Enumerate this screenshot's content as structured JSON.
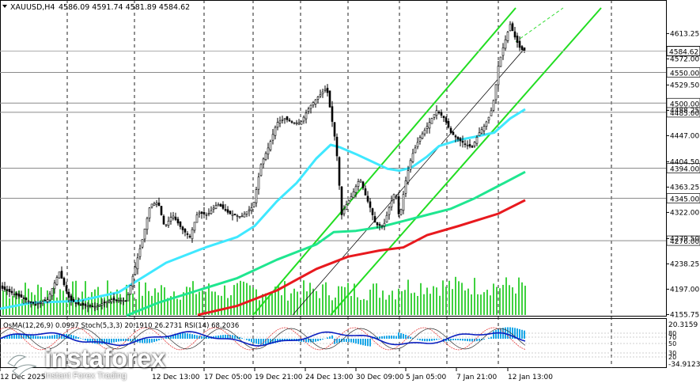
{
  "chart_data": {
    "type": "candlestick",
    "symbol": "XAUUSD,H4",
    "ohlc_header": "4586.09 4591.74 4581.89 4584.62",
    "current_price": 4584.62,
    "ylim": [
      4155,
      4655
    ],
    "price_ticks": [
      4613.25,
      4572.0,
      4529.5,
      4488.25,
      4447.0,
      4404.5,
      4363.25,
      4322.0,
      4279.5,
      4238.25,
      4197.0,
      4155.75
    ],
    "level_lines": [
      4550.0,
      4500.0,
      4485.0,
      4394.0,
      4345.0,
      4276.0
    ],
    "time_labels": [
      "12 Dec 2025",
      "12 Dec 13:00",
      "17 Dec 05:00",
      "19 Dec 21:00",
      "24 Dec 13:00",
      "30 Dec 09:00",
      "5 Jan 05:00",
      "7 Jan 21:00",
      "12 Jan 13:00"
    ],
    "price_anchors": [
      [
        0,
        4200
      ],
      [
        25,
        4185
      ],
      [
        45,
        4172
      ],
      [
        60,
        4180
      ],
      [
        75,
        4225
      ],
      [
        88,
        4180
      ],
      [
        100,
        4172
      ],
      [
        120,
        4168
      ],
      [
        140,
        4180
      ],
      [
        160,
        4178
      ],
      [
        180,
        4278
      ],
      [
        190,
        4335
      ],
      [
        200,
        4338
      ],
      [
        208,
        4298
      ],
      [
        218,
        4318
      ],
      [
        230,
        4295
      ],
      [
        240,
        4282
      ],
      [
        250,
        4322
      ],
      [
        262,
        4318
      ],
      [
        275,
        4336
      ],
      [
        290,
        4320
      ],
      [
        305,
        4315
      ],
      [
        320,
        4332
      ],
      [
        330,
        4400
      ],
      [
        340,
        4430
      ],
      [
        350,
        4468
      ],
      [
        360,
        4475
      ],
      [
        370,
        4468
      ],
      [
        380,
        4468
      ],
      [
        392,
        4495
      ],
      [
        402,
        4510
      ],
      [
        413,
        4525
      ],
      [
        420,
        4470
      ],
      [
        425,
        4430
      ],
      [
        432,
        4318
      ],
      [
        438,
        4335
      ],
      [
        445,
        4350
      ],
      [
        455,
        4378
      ],
      [
        462,
        4350
      ],
      [
        468,
        4330
      ],
      [
        475,
        4302
      ],
      [
        485,
        4300
      ],
      [
        492,
        4330
      ],
      [
        500,
        4358
      ],
      [
        505,
        4310
      ],
      [
        512,
        4368
      ],
      [
        520,
        4412
      ],
      [
        530,
        4442
      ],
      [
        540,
        4462
      ],
      [
        552,
        4488
      ],
      [
        562,
        4475
      ],
      [
        570,
        4452
      ],
      [
        580,
        4440
      ],
      [
        590,
        4432
      ],
      [
        597,
        4428
      ],
      [
        605,
        4450
      ],
      [
        612,
        4462
      ],
      [
        620,
        4482
      ],
      [
        625,
        4510
      ],
      [
        630,
        4560
      ],
      [
        637,
        4595
      ],
      [
        645,
        4628
      ],
      [
        652,
        4604
      ],
      [
        658,
        4588
      ],
      [
        665,
        4585
      ]
    ],
    "series": [
      {
        "type": "ma",
        "color": "#3fe8ff",
        "points": [
          [
            0,
            4165
          ],
          [
            40,
            4175
          ],
          [
            100,
            4178
          ],
          [
            150,
            4192
          ],
          [
            210,
            4240
          ],
          [
            260,
            4265
          ],
          [
            300,
            4282
          ],
          [
            322,
            4300
          ],
          [
            350,
            4340
          ],
          [
            375,
            4370
          ],
          [
            400,
            4410
          ],
          [
            418,
            4432
          ],
          [
            430,
            4428
          ],
          [
            450,
            4417
          ],
          [
            470,
            4405
          ],
          [
            490,
            4393
          ],
          [
            505,
            4390
          ],
          [
            520,
            4395
          ],
          [
            540,
            4413
          ],
          [
            555,
            4430
          ],
          [
            580,
            4440
          ],
          [
            600,
            4445
          ],
          [
            625,
            4452
          ],
          [
            645,
            4475
          ],
          [
            664,
            4490
          ]
        ]
      },
      {
        "type": "ma",
        "color": "#1fe690",
        "points": [
          [
            160,
            4154
          ],
          [
            200,
            4175
          ],
          [
            250,
            4195
          ],
          [
            300,
            4215
          ],
          [
            350,
            4245
          ],
          [
            400,
            4270
          ],
          [
            422,
            4290
          ],
          [
            450,
            4292
          ],
          [
            480,
            4298
          ],
          [
            510,
            4308
          ],
          [
            540,
            4318
          ],
          [
            570,
            4328
          ],
          [
            600,
            4345
          ],
          [
            630,
            4365
          ],
          [
            664,
            4388
          ]
        ]
      },
      {
        "type": "ma",
        "color": "#e8191e",
        "points": [
          [
            250,
            4155
          ],
          [
            300,
            4170
          ],
          [
            350,
            4195
          ],
          [
            400,
            4230
          ],
          [
            440,
            4250
          ],
          [
            480,
            4260
          ],
          [
            510,
            4265
          ],
          [
            540,
            4285
          ],
          [
            580,
            4300
          ],
          [
            610,
            4312
          ],
          [
            630,
            4320
          ],
          [
            664,
            4342
          ]
        ]
      }
    ],
    "channel_lines": [
      {
        "color": "#22dd22",
        "from": [
          320,
          4155
        ],
        "to": [
          652,
          4655
        ]
      },
      {
        "color": "#22dd22",
        "from": [
          418,
          4155
        ],
        "to": [
          760,
          4655
        ]
      },
      {
        "color": "#111111",
        "from": [
          370,
          4155
        ],
        "to": [
          664,
          4590
        ]
      }
    ],
    "indicator_header": "OsMA(12,26,9) 0.0997   Stoch(5,3,3) 20.1910 26.2731   RSI(14) 68.2036",
    "indicator_top": "20.3159",
    "indicator_bottom": "-34.9123",
    "indicator_levels": [
      "80",
      "70",
      "50",
      "30",
      "20"
    ]
  },
  "watermark": {
    "name": "instaforex",
    "tagline": "Instant Forex Trading"
  }
}
